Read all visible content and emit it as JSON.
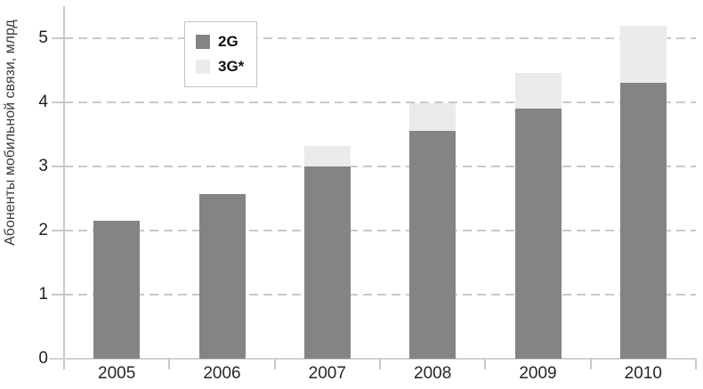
{
  "chart_data": {
    "type": "bar",
    "stacked": true,
    "title": "",
    "xlabel": "",
    "ylabel": "Абоненты мобильной связи, млрд",
    "categories": [
      "2005",
      "2006",
      "2007",
      "2008",
      "2009",
      "2010"
    ],
    "series": [
      {
        "name": "2G",
        "color": "#848484",
        "values": [
          2.15,
          2.57,
          3.0,
          3.55,
          3.9,
          4.3
        ]
      },
      {
        "name": "3G*",
        "color": "#ebebeb",
        "values": [
          0,
          0,
          0.32,
          0.43,
          0.56,
          0.9
        ]
      }
    ],
    "totals": [
      2.15,
      2.57,
      3.32,
      3.98,
      4.46,
      5.2
    ],
    "ylim": [
      0,
      5.5
    ],
    "yticks": [
      "0",
      "1",
      "2",
      "3",
      "4",
      "5"
    ],
    "grid": "horizontal-dashed",
    "legend_position": "top-left-inside"
  },
  "colors": {
    "bar_2g": "#848484",
    "bar_3g": "#ebebeb",
    "gridline": "#c9c9c9",
    "axis": "#c9c9c9",
    "tick_text": "#1f1f1f",
    "axis_title_text": "#3a3a3a",
    "background": "#ffffff"
  }
}
